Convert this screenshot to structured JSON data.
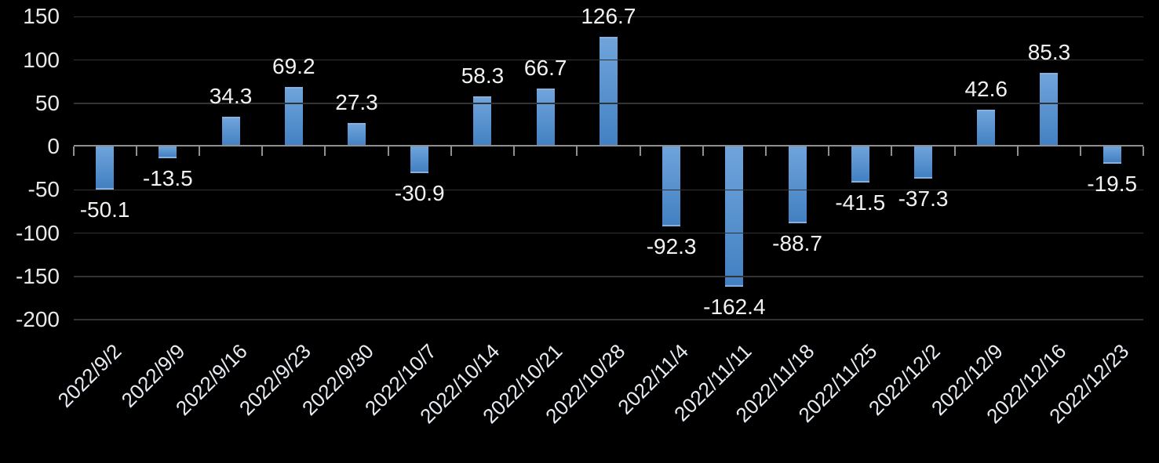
{
  "chart_data": {
    "type": "bar",
    "title": "",
    "xlabel": "",
    "ylabel": "",
    "categories": [
      "2022/9/2",
      "2022/9/9",
      "2022/9/16",
      "2022/9/23",
      "2022/9/30",
      "2022/10/7",
      "2022/10/14",
      "2022/10/21",
      "2022/10/28",
      "2022/11/4",
      "2022/11/11",
      "2022/11/18",
      "2022/11/25",
      "2022/12/2",
      "2022/12/9",
      "2022/12/16",
      "2022/12/23"
    ],
    "values": [
      -50.1,
      -13.5,
      34.3,
      69.2,
      27.3,
      -30.9,
      58.3,
      66.7,
      126.7,
      -92.3,
      -162.4,
      -88.7,
      -41.5,
      -37.3,
      42.6,
      85.3,
      -19.5
    ],
    "data_labels": [
      "-50.1",
      "-13.5",
      "34.3",
      "69.2",
      "27.3",
      "-30.9",
      "58.3",
      "66.7",
      "126.7",
      "-92.3",
      "-162.4",
      "-88.7",
      "-41.5",
      "-37.3",
      "42.6",
      "85.3",
      "-19.5"
    ],
    "y_ticks": [
      150,
      100,
      50,
      0,
      -50,
      -100,
      -150,
      -200
    ],
    "ylim": [
      -200,
      150
    ],
    "grid": true,
    "legend_position": "none",
    "data_label_position": "outside-end",
    "x_label_rotation_deg": 45,
    "colors": {
      "background": "#000000",
      "bar_gradient_top": "#6fa4db",
      "bar_gradient_bottom": "#4280c2",
      "bar_edge": "#86b1df",
      "gridline": "#333333",
      "axis": "#8f8f8f",
      "axis_text": "#e8e8e8",
      "category_text": "#e7ecf3",
      "data_label_text": "#f2f2f2"
    }
  }
}
